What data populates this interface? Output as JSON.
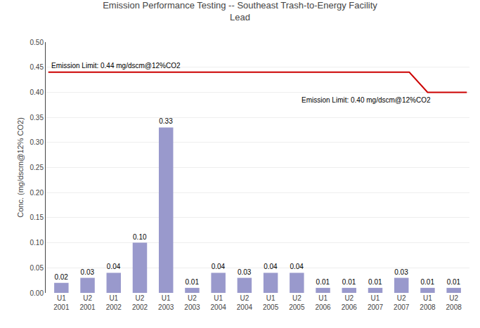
{
  "chart_data": {
    "type": "bar",
    "title": "Emission Performance Testing -- Southeast Trash-to-Energy Facility",
    "subtitle": "Lead",
    "y_label": "Conc. (mg/dscm@12% CO2)",
    "categories": [
      "U1\n2001",
      "U2\n2001",
      "U1\n2002",
      "U2\n2002",
      "U1\n2003",
      "U2\n2003",
      "U1\n2004",
      "U2\n2004",
      "U1\n2005",
      "U2\n2005",
      "U1\n2006",
      "U2\n2006",
      "U1\n2007",
      "U2\n2007",
      "U1\n2008",
      "U2\n2008"
    ],
    "values": [
      0.02,
      0.03,
      0.04,
      0.1,
      0.33,
      0.01,
      0.04,
      0.03,
      0.04,
      0.04,
      0.01,
      0.01,
      0.01,
      0.03,
      0.01,
      0.01
    ],
    "value_labels": [
      "0.02",
      "0.03",
      "0.04",
      "0.10",
      "0.33",
      "0.01",
      "0.04",
      "0.03",
      "0.04",
      "0.04",
      "0.01",
      "0.01",
      "0.01",
      "0.03",
      "0.01",
      "0.01"
    ],
    "data_labels": true,
    "color": "#9999cc",
    "series": [
      {
        "type": "line",
        "color": "#cc0000",
        "x": [
          -0.5,
          13.3,
          14.0,
          15.5
        ],
        "values": [
          0.44,
          0.44,
          0.4,
          0.4
        ]
      }
    ],
    "annotations": [
      "Emission Limit: 0.44 mg/dscm@12%CO2",
      "Emission Limit: 0.40 mg/dscm@12%CO2"
    ],
    "ylim": [
      0,
      0.5
    ],
    "yticks": [
      {
        "value": 0.0,
        "label": "0.00"
      },
      0.05,
      {
        "value": 0.1,
        "label": "0.10"
      },
      0.15,
      {
        "value": 0.2,
        "label": "0.20"
      },
      0.25,
      {
        "value": 0.3,
        "label": "0.30"
      },
      0.35,
      {
        "value": 0.4,
        "label": "0.40"
      },
      0.45,
      {
        "value": 0.5,
        "label": "0.50"
      }
    ],
    "grid": true
  }
}
